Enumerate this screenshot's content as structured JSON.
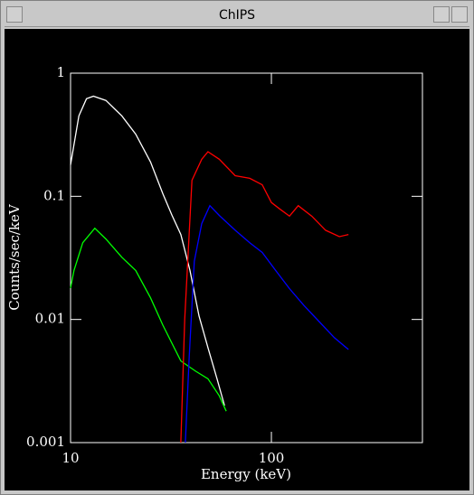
{
  "window": {
    "title": "ChIPS"
  },
  "chart_data": {
    "type": "line",
    "xlabel": "Energy (keV)",
    "ylabel": "Counts/sec/keV",
    "xlog": true,
    "ylog": true,
    "xlim": [
      10,
      565
    ],
    "ylim": [
      0.001,
      1
    ],
    "xticks": [
      10,
      100
    ],
    "yticks": [
      0.001,
      0.01,
      0.1,
      1
    ],
    "series": [
      {
        "name": "white",
        "color": "#ffffff",
        "x": [
          10,
          11,
          12,
          13,
          15,
          18,
          21.1,
          25,
          28.8,
          32,
          35.4,
          39.3,
          43.6,
          48.3,
          53.6,
          58.4
        ],
        "values": [
          0.18,
          0.45,
          0.62,
          0.65,
          0.6,
          0.45,
          0.32,
          0.19,
          0.105,
          0.07,
          0.049,
          0.025,
          0.0107,
          0.0059,
          0.0033,
          0.002
        ]
      },
      {
        "name": "green",
        "color": "#00ff00",
        "x": [
          10,
          10.4,
          11.5,
          13.2,
          15,
          18,
          21.1,
          25,
          28.8,
          35.4,
          42,
          48.3,
          55,
          59.6
        ],
        "values": [
          0.018,
          0.025,
          0.042,
          0.055,
          0.045,
          0.032,
          0.025,
          0.015,
          0.009,
          0.0046,
          0.0038,
          0.0033,
          0.0024,
          0.0018
        ]
      },
      {
        "name": "red",
        "color": "#ff0000",
        "x": [
          35.4,
          37,
          40.2,
          45,
          48.3,
          55,
          66,
          78,
          90,
          100,
          110,
          123,
          136,
          159,
          186,
          218,
          242
        ],
        "values": [
          0.001,
          0.01,
          0.135,
          0.2,
          0.23,
          0.2,
          0.147,
          0.14,
          0.124,
          0.089,
          0.079,
          0.069,
          0.084,
          0.069,
          0.053,
          0.047,
          0.049
        ]
      },
      {
        "name": "blue",
        "color": "#0000ff",
        "x": [
          37.3,
          39,
          41.3,
          45,
          49.4,
          55,
          66,
          78,
          90,
          105,
          123,
          145,
          167,
          206,
          242
        ],
        "values": [
          0.001,
          0.005,
          0.0297,
          0.06,
          0.084,
          0.07,
          0.053,
          0.042,
          0.035,
          0.025,
          0.0178,
          0.013,
          0.0102,
          0.0071,
          0.0057
        ]
      }
    ]
  }
}
